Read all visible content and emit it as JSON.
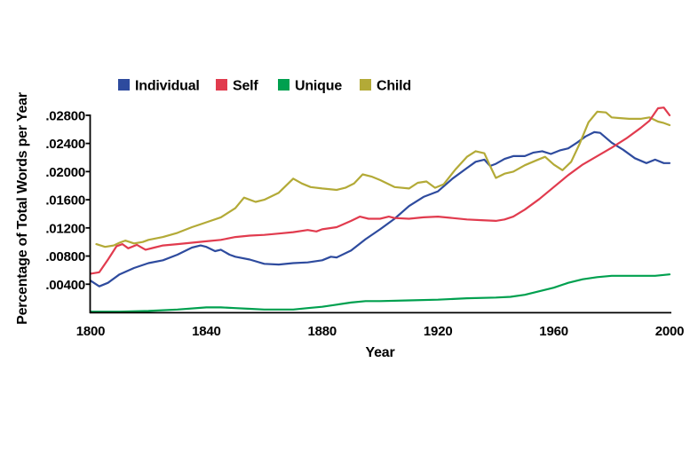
{
  "figure": {
    "background": "#ffffff",
    "text_color": "#000000",
    "axis_color": "#000000"
  },
  "chart_data": {
    "type": "line",
    "title": "",
    "xlabel": "Year",
    "ylabel": "Percentage of Total Words per Year",
    "xlim": [
      1800,
      2000
    ],
    "ylim": [
      0,
      0.0295
    ],
    "grid": "off",
    "legend_position": "top",
    "x_ticks": {
      "values": [
        1800,
        1840,
        1880,
        1920,
        1960,
        2000
      ],
      "labels": [
        "1800",
        "1840",
        "1880",
        "1920",
        "1960",
        "2000"
      ]
    },
    "y_ticks": {
      "values": [
        0.004,
        0.008,
        0.012,
        0.016,
        0.02,
        0.024,
        0.028
      ],
      "labels": [
        ".00400",
        ".00800",
        ".01200",
        ".01600",
        ".02000",
        ".02400",
        ".02800"
      ]
    },
    "series": [
      {
        "name": "Individual",
        "color": "#2e4b9e",
        "x": [
          1800,
          1803,
          1806,
          1810,
          1815,
          1820,
          1825,
          1830,
          1835,
          1838,
          1840,
          1843,
          1845,
          1848,
          1850,
          1855,
          1860,
          1865,
          1870,
          1875,
          1880,
          1883,
          1885,
          1890,
          1895,
          1900,
          1905,
          1910,
          1915,
          1920,
          1925,
          1930,
          1933,
          1936,
          1938,
          1940,
          1943,
          1946,
          1950,
          1953,
          1956,
          1959,
          1962,
          1965,
          1968,
          1971,
          1974,
          1976,
          1980,
          1984,
          1988,
          1992,
          1995,
          1998,
          2000
        ],
        "y": [
          0.0045,
          0.0037,
          0.0042,
          0.0054,
          0.0063,
          0.007,
          0.0074,
          0.0082,
          0.0092,
          0.0095,
          0.0093,
          0.0087,
          0.0089,
          0.0082,
          0.0079,
          0.0075,
          0.0069,
          0.0068,
          0.007,
          0.0071,
          0.0074,
          0.0079,
          0.0078,
          0.0088,
          0.0104,
          0.0118,
          0.0133,
          0.0151,
          0.0164,
          0.0172,
          0.019,
          0.0205,
          0.0214,
          0.0217,
          0.0208,
          0.0211,
          0.0218,
          0.0222,
          0.0222,
          0.0227,
          0.0229,
          0.0225,
          0.023,
          0.0233,
          0.0241,
          0.025,
          0.0256,
          0.0255,
          0.0241,
          0.0231,
          0.0219,
          0.0212,
          0.0217,
          0.0212,
          0.0212
        ]
      },
      {
        "name": "Self",
        "color": "#e13b4e",
        "x": [
          1800,
          1803,
          1806,
          1809,
          1811,
          1813,
          1816,
          1819,
          1822,
          1825,
          1830,
          1835,
          1840,
          1845,
          1850,
          1855,
          1860,
          1865,
          1870,
          1875,
          1878,
          1880,
          1885,
          1890,
          1893,
          1896,
          1900,
          1903,
          1905,
          1910,
          1915,
          1920,
          1925,
          1930,
          1935,
          1940,
          1943,
          1946,
          1950,
          1955,
          1960,
          1965,
          1970,
          1975,
          1980,
          1985,
          1990,
          1993,
          1996,
          1998,
          2000
        ],
        "y": [
          0.0055,
          0.0057,
          0.0075,
          0.0094,
          0.0097,
          0.0091,
          0.0096,
          0.0089,
          0.0092,
          0.0095,
          0.0097,
          0.0099,
          0.0101,
          0.0103,
          0.0107,
          0.0109,
          0.011,
          0.0112,
          0.0114,
          0.0117,
          0.0115,
          0.0118,
          0.0121,
          0.013,
          0.0136,
          0.0133,
          0.0133,
          0.0136,
          0.0134,
          0.0133,
          0.0135,
          0.0136,
          0.0134,
          0.0132,
          0.0131,
          0.013,
          0.0132,
          0.0136,
          0.0146,
          0.0161,
          0.0178,
          0.0195,
          0.021,
          0.0222,
          0.0234,
          0.0247,
          0.0262,
          0.0272,
          0.029,
          0.0291,
          0.028
        ]
      },
      {
        "name": "Unique",
        "color": "#00a04f",
        "x": [
          1800,
          1810,
          1820,
          1830,
          1840,
          1845,
          1850,
          1855,
          1860,
          1865,
          1870,
          1875,
          1880,
          1885,
          1890,
          1895,
          1900,
          1910,
          1920,
          1930,
          1940,
          1945,
          1950,
          1955,
          1960,
          1965,
          1970,
          1975,
          1980,
          1985,
          1990,
          1995,
          2000
        ],
        "y": [
          0.0001,
          0.0001,
          0.0002,
          0.0004,
          0.0007,
          0.0007,
          0.0006,
          0.0005,
          0.0004,
          0.0004,
          0.0004,
          0.0006,
          0.0008,
          0.0011,
          0.0014,
          0.0016,
          0.0016,
          0.0017,
          0.0018,
          0.002,
          0.0021,
          0.0022,
          0.0025,
          0.003,
          0.0035,
          0.0042,
          0.0047,
          0.005,
          0.0052,
          0.0052,
          0.0052,
          0.0052,
          0.0054
        ]
      },
      {
        "name": "Child",
        "color": "#b3aa37",
        "x": [
          1802,
          1805,
          1808,
          1810,
          1812,
          1815,
          1818,
          1820,
          1825,
          1830,
          1835,
          1840,
          1845,
          1850,
          1853,
          1857,
          1860,
          1865,
          1870,
          1873,
          1876,
          1880,
          1885,
          1888,
          1891,
          1894,
          1897,
          1900,
          1905,
          1910,
          1913,
          1916,
          1919,
          1922,
          1926,
          1930,
          1933,
          1936,
          1938,
          1940,
          1943,
          1946,
          1950,
          1954,
          1957,
          1960,
          1963,
          1966,
          1969,
          1972,
          1975,
          1978,
          1980,
          1983,
          1986,
          1990,
          1993,
          1996,
          1998,
          2000
        ],
        "y": [
          0.0097,
          0.0093,
          0.0095,
          0.0099,
          0.0102,
          0.0098,
          0.01,
          0.0103,
          0.0107,
          0.0113,
          0.0121,
          0.0128,
          0.0135,
          0.0148,
          0.0163,
          0.0157,
          0.016,
          0.017,
          0.019,
          0.0183,
          0.0178,
          0.0176,
          0.0174,
          0.0177,
          0.0183,
          0.0196,
          0.0193,
          0.0188,
          0.0178,
          0.0176,
          0.0184,
          0.0186,
          0.0177,
          0.0182,
          0.0203,
          0.0221,
          0.0229,
          0.0226,
          0.0208,
          0.0191,
          0.0197,
          0.02,
          0.0209,
          0.0216,
          0.0221,
          0.021,
          0.0202,
          0.0214,
          0.024,
          0.027,
          0.0285,
          0.0284,
          0.0277,
          0.0276,
          0.0275,
          0.0275,
          0.0277,
          0.0271,
          0.0269,
          0.0266
        ]
      }
    ]
  }
}
